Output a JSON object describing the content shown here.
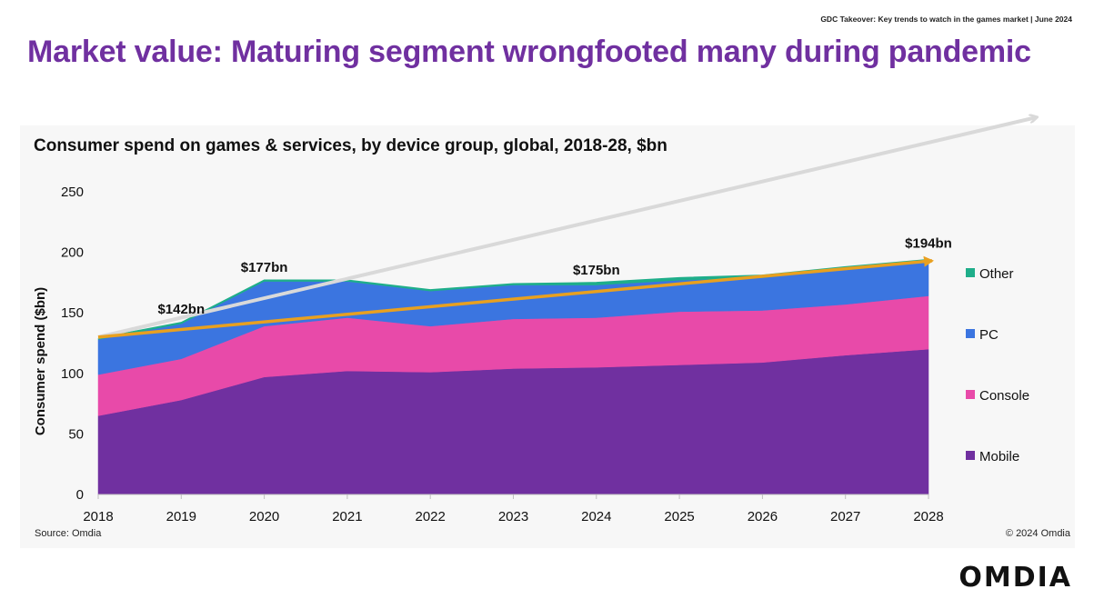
{
  "header": {
    "top_note": "GDC Takeover: Key trends to watch in the games market | June 2024",
    "title": "Market value: Maturing segment wrongfooted many during pandemic"
  },
  "footer": {
    "source": "Source: Omdia",
    "copyright": "© 2024 Omdia",
    "brand": "OMDIA"
  },
  "colors": {
    "title": "#7030a0",
    "mobile": "#7030a0",
    "console": "#e84aa9",
    "pc": "#3b75e0",
    "other": "#1fae8a",
    "trend": "#e8a020",
    "arrow": "#d9d9d9"
  },
  "chart_data": {
    "type": "area",
    "stacked": true,
    "title": "Consumer spend on games & services, by device group, global, 2018-28, $bn",
    "ylabel": "Consumer spend ($bn)",
    "xlabel": "",
    "ylim": [
      0,
      250
    ],
    "yticks": [
      0,
      50,
      100,
      150,
      200,
      250
    ],
    "grid": false,
    "legend_position": "right",
    "x": [
      "2018",
      "2019",
      "2020",
      "2021",
      "2022",
      "2023",
      "2024",
      "2025",
      "2026",
      "2027",
      "2028"
    ],
    "series": [
      {
        "name": "Mobile",
        "color": "#7030a0",
        "values": [
          65,
          78,
          97,
          102,
          101,
          104,
          105,
          107,
          109,
          115,
          120
        ]
      },
      {
        "name": "Console",
        "color": "#e84aa9",
        "values": [
          34,
          34,
          42,
          44,
          38,
          41,
          41,
          44,
          43,
          42,
          44
        ]
      },
      {
        "name": "PC",
        "color": "#3b75e0",
        "values": [
          29,
          29,
          37,
          30,
          29,
          28,
          27,
          26,
          27,
          29,
          28
        ]
      },
      {
        "name": "Other",
        "color": "#1fae8a",
        "values": [
          1,
          1,
          1,
          1,
          1,
          1,
          2,
          2,
          2,
          2,
          2
        ]
      }
    ],
    "legend_order": [
      "Other",
      "PC",
      "Console",
      "Mobile"
    ],
    "annotations": [
      {
        "text": "$142bn",
        "x": "2019",
        "y": 142
      },
      {
        "text": "$177bn",
        "x": "2020",
        "y": 177
      },
      {
        "text": "$175bn",
        "x": "2024",
        "y": 175
      },
      {
        "text": "$194bn",
        "x": "2028",
        "y": 194
      }
    ],
    "trend_arrow": {
      "from": [
        "2018",
        130
      ],
      "to": [
        "2028",
        193
      ]
    }
  }
}
